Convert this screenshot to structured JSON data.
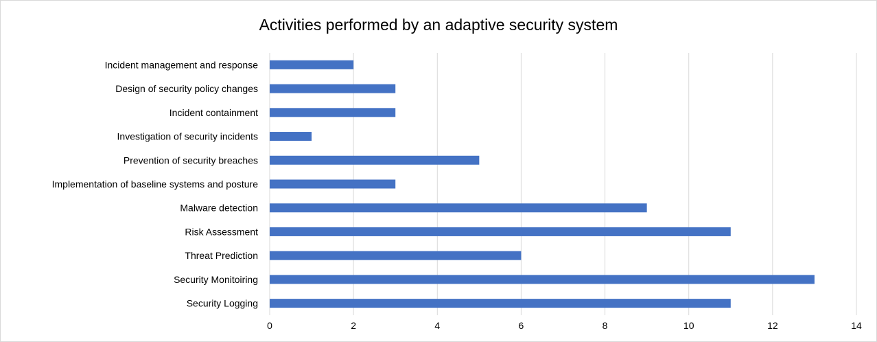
{
  "chart_data": {
    "type": "bar",
    "orientation": "horizontal",
    "title": "Activities performed by an adaptive security system",
    "xlabel": "",
    "ylabel": "",
    "xlim": [
      0,
      14
    ],
    "xticks": [
      0,
      2,
      4,
      6,
      8,
      10,
      12,
      14
    ],
    "grid": true,
    "legend": "none",
    "bar_color": "#4472c4",
    "categories": [
      "Incident management and response",
      "Design of security policy changes",
      "Incident containment",
      "Investigation of security incidents",
      "Prevention of security breaches",
      "Implementation of baseline systems and posture",
      "Malware detection",
      "Risk Assessment",
      "Threat Prediction",
      "Security Monitoiring",
      "Security Logging"
    ],
    "values": [
      2,
      3,
      3,
      1,
      5,
      3,
      9,
      11,
      6,
      13,
      11
    ]
  }
}
